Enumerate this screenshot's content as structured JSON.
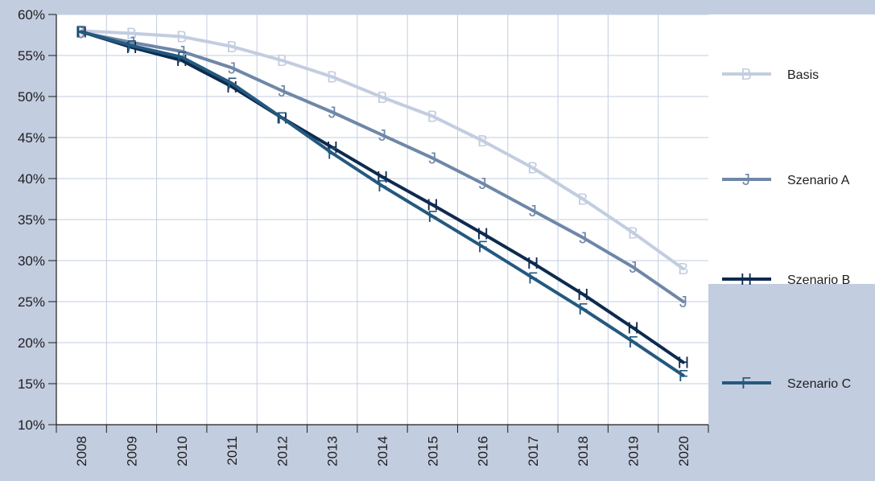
{
  "chart_data": {
    "type": "line",
    "x": [
      "2008",
      "2009",
      "2010",
      "2011",
      "2012",
      "2013",
      "2014",
      "2015",
      "2016",
      "2017",
      "2018",
      "2019",
      "2020"
    ],
    "ylim": [
      10,
      60
    ],
    "yticks": [
      "10%",
      "15%",
      "20%",
      "25%",
      "30%",
      "35%",
      "40%",
      "45%",
      "50%",
      "55%",
      "60%"
    ],
    "grid": true,
    "legend": "right",
    "series": [
      {
        "name": "Basis",
        "marker": "B",
        "color": "#c3cde0",
        "values": [
          58.0,
          57.7,
          57.3,
          56.1,
          54.4,
          52.4,
          49.9,
          47.6,
          44.6,
          41.3,
          37.5,
          33.4,
          29.0
        ]
      },
      {
        "name": "Szenario A",
        "marker": "J",
        "color": "#6f87a8",
        "values": [
          57.8,
          56.6,
          55.5,
          53.5,
          50.7,
          48.1,
          45.3,
          42.5,
          39.4,
          36.1,
          32.8,
          29.2,
          25.0
        ]
      },
      {
        "name": "Szenario B",
        "marker": "H",
        "color": "#0e2a4f",
        "values": [
          57.9,
          56.0,
          54.4,
          51.2,
          47.4,
          43.8,
          40.2,
          36.8,
          33.3,
          29.7,
          25.9,
          21.8,
          17.6
        ]
      },
      {
        "name": "Szenario C",
        "marker": "F",
        "color": "#24597f",
        "values": [
          57.9,
          56.2,
          54.8,
          51.6,
          47.4,
          43.1,
          39.1,
          35.4,
          31.7,
          27.9,
          24.1,
          20.1,
          16.0
        ]
      }
    ]
  }
}
